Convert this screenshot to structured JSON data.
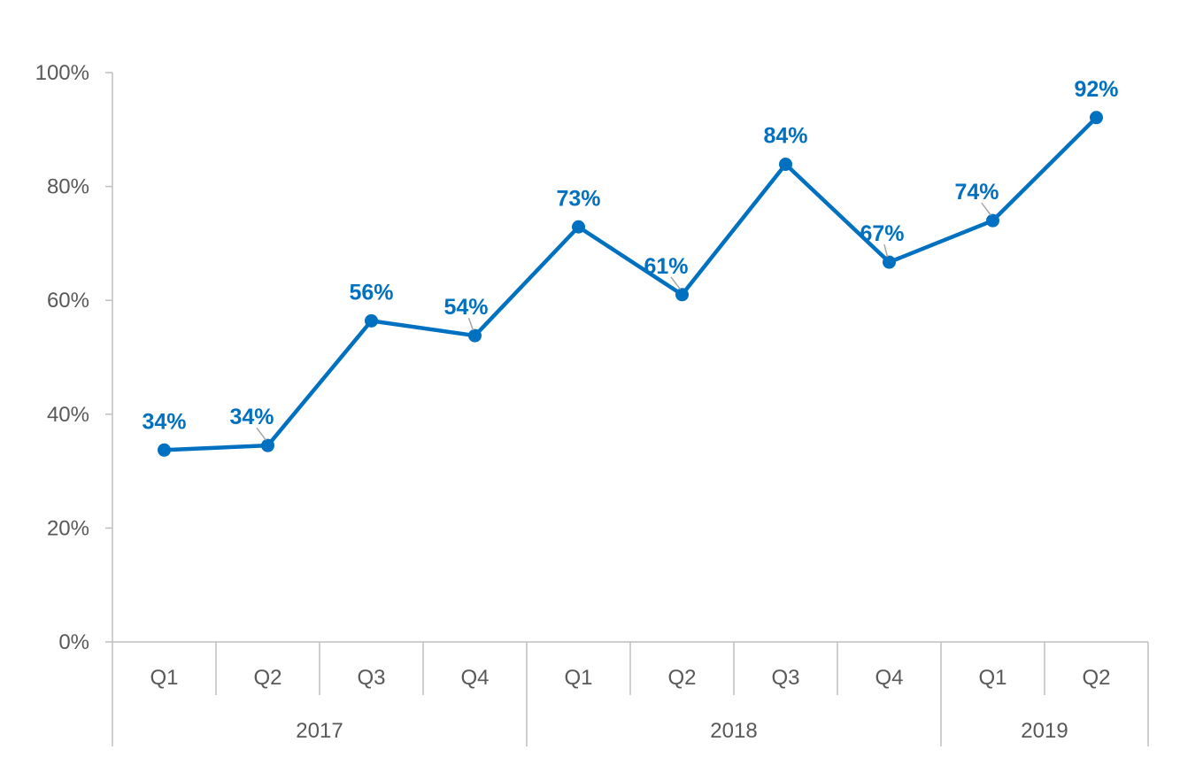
{
  "chart_data": {
    "type": "line",
    "categories": [
      "Q1",
      "Q2",
      "Q3",
      "Q4",
      "Q1",
      "Q2",
      "Q3",
      "Q4",
      "Q1",
      "Q2"
    ],
    "category_groups": [
      {
        "label": "2017",
        "count": 4
      },
      {
        "label": "2018",
        "count": 4
      },
      {
        "label": "2019",
        "count": 2
      }
    ],
    "series": [
      {
        "values": [
          0.337,
          0.345,
          0.564,
          0.538,
          0.729,
          0.61,
          0.839,
          0.667,
          0.74,
          0.921
        ],
        "data_labels": [
          "34%",
          "34%",
          "56%",
          "54%",
          "73%",
          "61%",
          "84%",
          "67%",
          "74%",
          "92%"
        ],
        "color": "#0070c0"
      }
    ],
    "y_ticks": [
      "0%",
      "20%",
      "40%",
      "60%",
      "80%",
      "100%"
    ],
    "ylim": [
      0,
      1
    ],
    "grid": false,
    "title": "",
    "xlabel": "",
    "ylabel": ""
  }
}
